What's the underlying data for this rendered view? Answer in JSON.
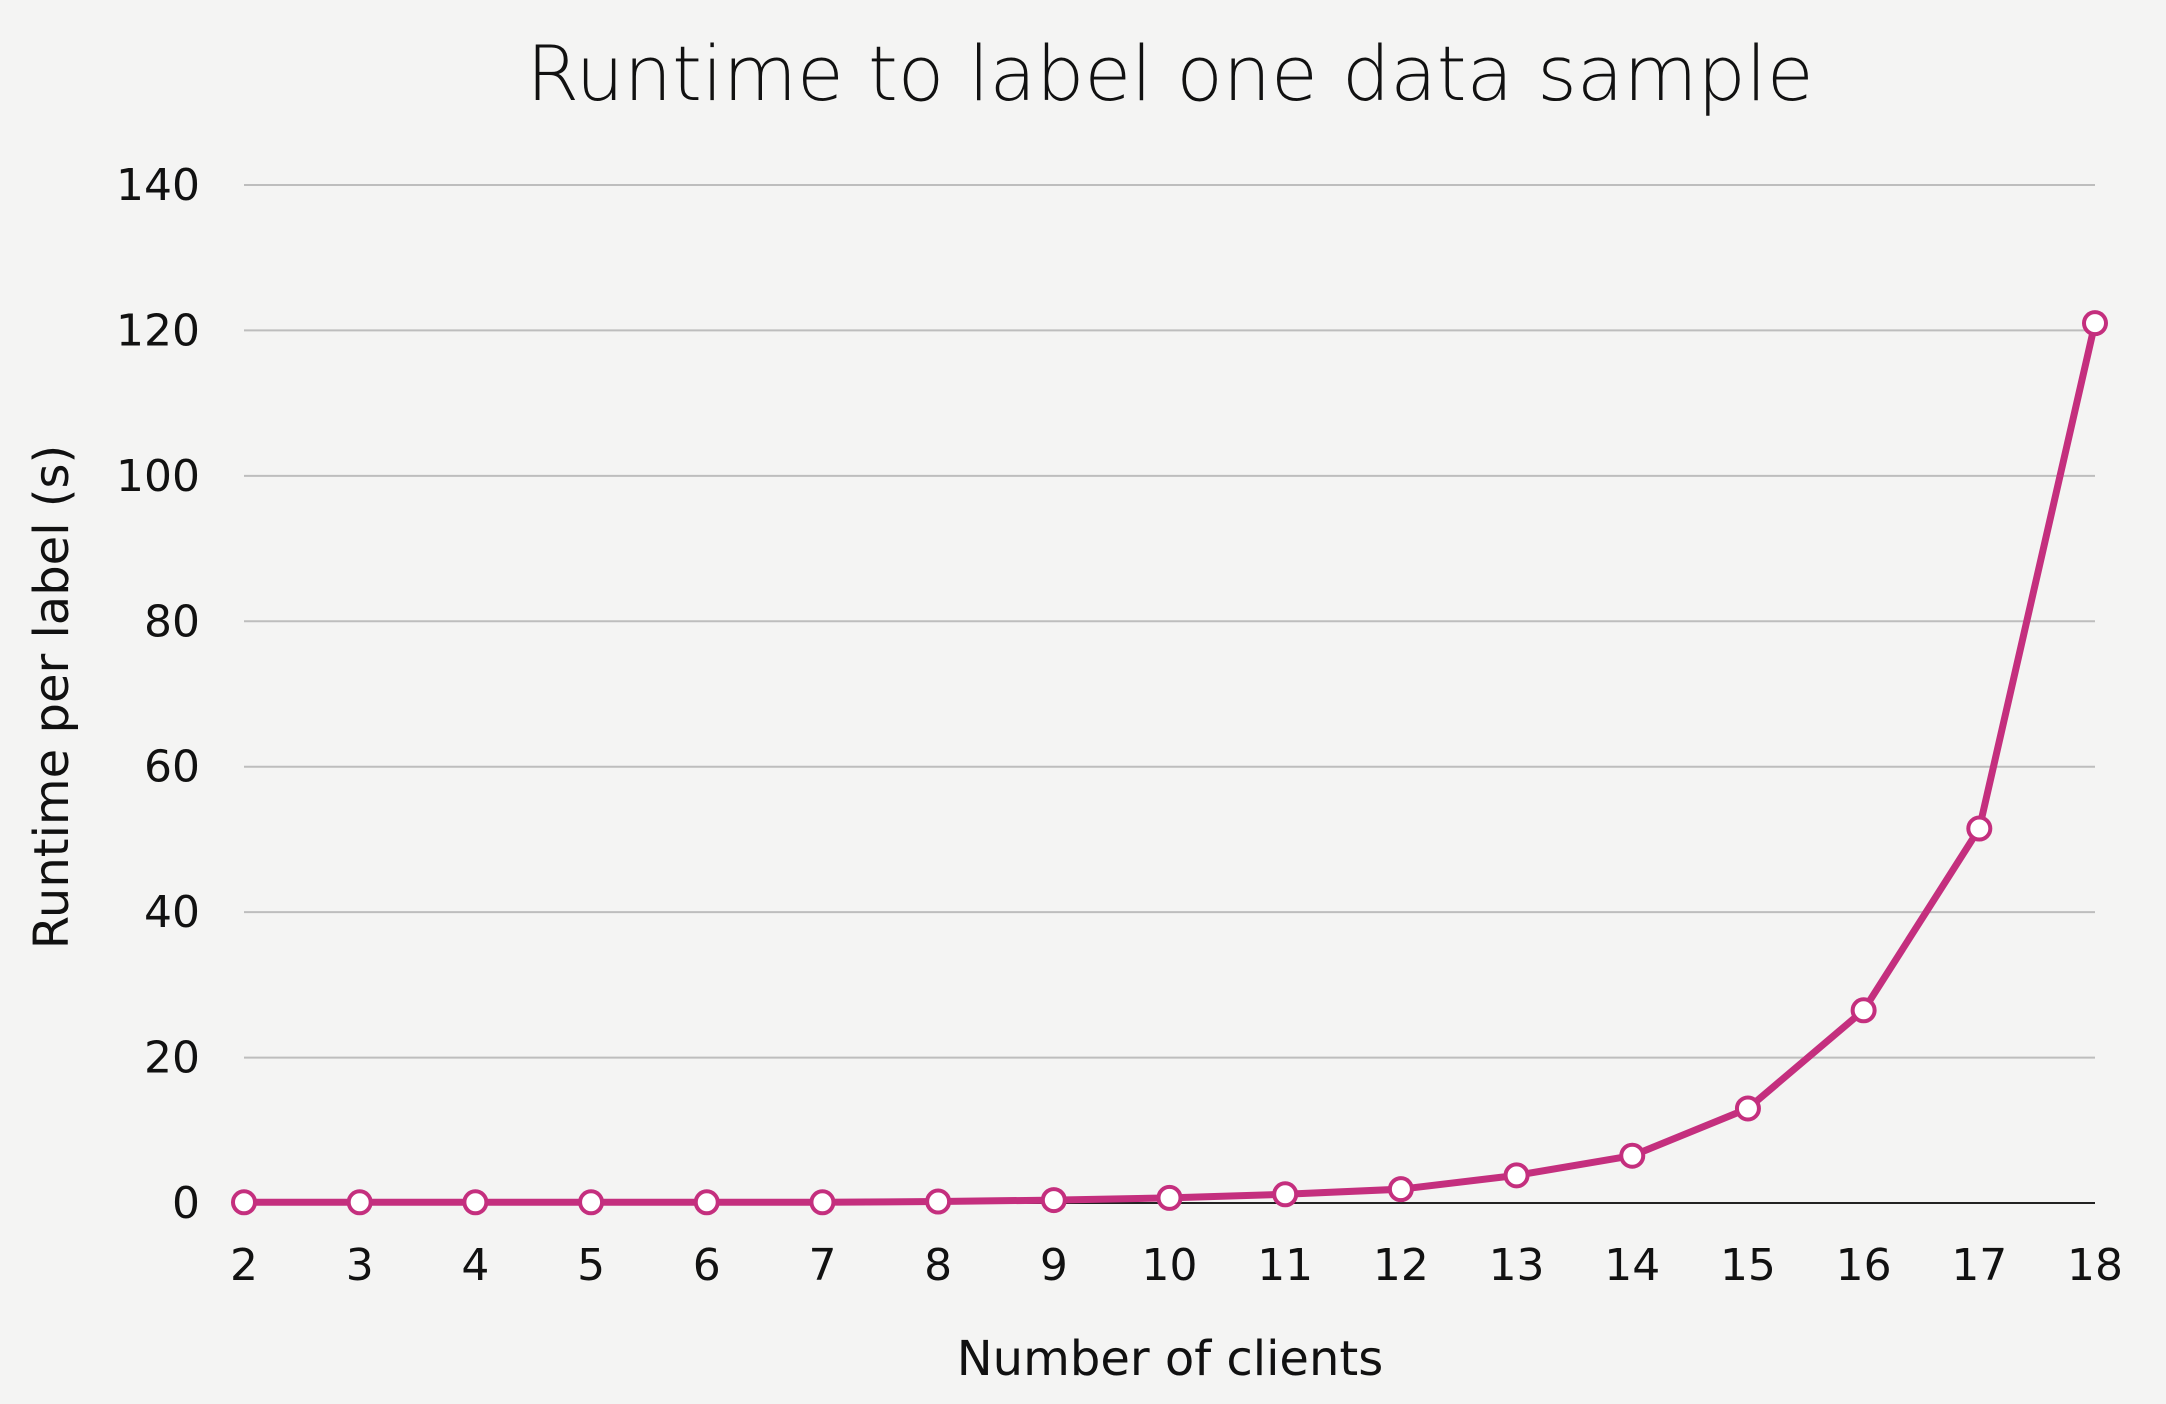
{
  "chart_data": {
    "type": "line",
    "title": "Runtime to label one data sample",
    "xlabel": "Number of clients",
    "ylabel": "Runtime per label (s)",
    "x": [
      2,
      3,
      4,
      5,
      6,
      7,
      8,
      9,
      10,
      11,
      12,
      13,
      14,
      15,
      16,
      17,
      18
    ],
    "series": [
      {
        "values": [
          0.1,
          0.1,
          0.1,
          0.1,
          0.1,
          0.1,
          0.2,
          0.4,
          0.7,
          1.2,
          1.9,
          3.8,
          6.5,
          13,
          26.5,
          51.5,
          121
        ]
      }
    ],
    "ylim": [
      0,
      140
    ],
    "yticks": [
      0,
      20,
      40,
      60,
      80,
      100,
      120,
      140
    ],
    "grid": true,
    "line_color": "#c42f7e",
    "marker_fill": "#ffffff"
  }
}
